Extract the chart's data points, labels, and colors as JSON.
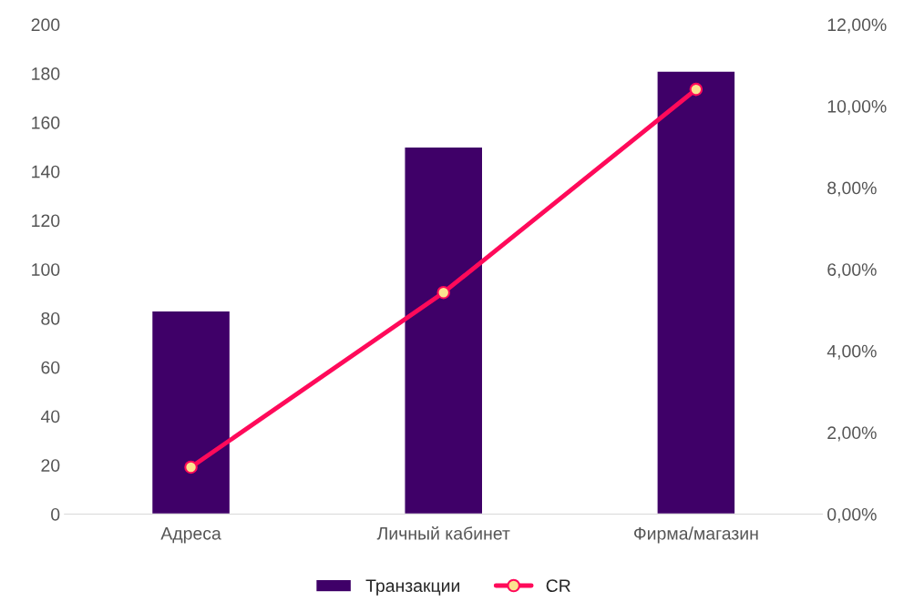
{
  "chart_data": {
    "type": "bar",
    "categories": [
      "Адреса",
      "Личный кабинет",
      "Фирма/магазин"
    ],
    "series": [
      {
        "name": "Транзакции",
        "color": "#3f0068",
        "values": [
          83,
          150,
          181
        ]
      },
      {
        "name": "CR",
        "type": "line",
        "axis": "y2",
        "color": "#ff0a5a",
        "marker": "circle",
        "values": [
          1.15,
          5.43,
          10.41
        ]
      }
    ],
    "ylim": [
      0,
      200
    ],
    "yticks": [
      0,
      20,
      40,
      60,
      80,
      100,
      120,
      140,
      160,
      180,
      200
    ],
    "y2lim": [
      0,
      12
    ],
    "y2ticks": [
      {
        "value": 0,
        "label": "0,00%"
      },
      {
        "value": 2,
        "label": "2,00%"
      },
      {
        "value": 4,
        "label": "4,00%"
      },
      {
        "value": 6,
        "label": "6,00%"
      },
      {
        "value": 8,
        "label": "8,00%"
      },
      {
        "value": 10,
        "label": "10,00%"
      },
      {
        "value": 12,
        "label": "12,00%"
      }
    ],
    "grid": false,
    "legend": "bottom"
  }
}
